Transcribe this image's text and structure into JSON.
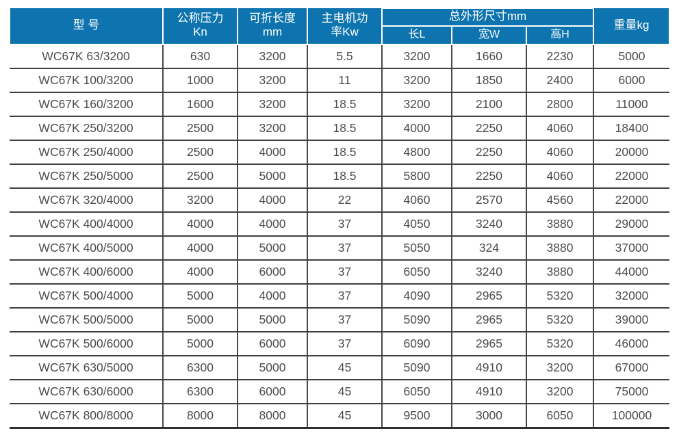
{
  "colors": {
    "header_bg": "#0e74af",
    "header_text": "#ffffff",
    "body_text": "#4c4c4c",
    "row_line": "#3f3f3f",
    "column_line": "#4a4a4a",
    "bottom_border": "#2f2f2f"
  },
  "table": {
    "header": {
      "model": "型 号",
      "pressure_line1": "公称压力",
      "pressure_line2": "Kn",
      "fold_length_line1": "可折长度",
      "fold_length_line2": "mm",
      "power_line1": "主电机功",
      "power_line2": "率Kw",
      "dimensions_group": "总外形尺寸mm",
      "dim_length": "长L",
      "dim_width": "宽W",
      "dim_height": "高H",
      "weight": "重量kg"
    },
    "rows": [
      {
        "model": "WC67K 63/3200",
        "pressure": "630",
        "fold_length": "3200",
        "power": "5.5",
        "dim_l": "3200",
        "dim_w": "1660",
        "dim_h": "2230",
        "weight": "5000"
      },
      {
        "model": "WC67K 100/3200",
        "pressure": "1000",
        "fold_length": "3200",
        "power": "11",
        "dim_l": "3200",
        "dim_w": "1850",
        "dim_h": "2400",
        "weight": "6000"
      },
      {
        "model": "WC67K 160/3200",
        "pressure": "1600",
        "fold_length": "3200",
        "power": "18.5",
        "dim_l": "3200",
        "dim_w": "2100",
        "dim_h": "2800",
        "weight": "11000"
      },
      {
        "model": "WC67K 250/3200",
        "pressure": "2500",
        "fold_length": "3200",
        "power": "18.5",
        "dim_l": "4000",
        "dim_w": "2250",
        "dim_h": "4060",
        "weight": "18400"
      },
      {
        "model": "WC67K 250/4000",
        "pressure": "2500",
        "fold_length": "4000",
        "power": "18.5",
        "dim_l": "4800",
        "dim_w": "2250",
        "dim_h": "4060",
        "weight": "20000"
      },
      {
        "model": "WC67K 250/5000",
        "pressure": "2500",
        "fold_length": "5000",
        "power": "18.5",
        "dim_l": "5800",
        "dim_w": "2250",
        "dim_h": "4060",
        "weight": "22000"
      },
      {
        "model": "WC67K 320/4000",
        "pressure": "3200",
        "fold_length": "4000",
        "power": "22",
        "dim_l": "4060",
        "dim_w": "2570",
        "dim_h": "4560",
        "weight": "22000"
      },
      {
        "model": "WC67K 400/4000",
        "pressure": "4000",
        "fold_length": "4000",
        "power": "37",
        "dim_l": "4050",
        "dim_w": "3240",
        "dim_h": "3880",
        "weight": "29000"
      },
      {
        "model": "WC67K 400/5000",
        "pressure": "4000",
        "fold_length": "5000",
        "power": "37",
        "dim_l": "5050",
        "dim_w": "324",
        "dim_h": "3880",
        "weight": "37000"
      },
      {
        "model": "WC67K 400/6000",
        "pressure": "4000",
        "fold_length": "6000",
        "power": "37",
        "dim_l": "6050",
        "dim_w": "3240",
        "dim_h": "3880",
        "weight": "44000"
      },
      {
        "model": "WC67K 500/4000",
        "pressure": "5000",
        "fold_length": "4000",
        "power": "37",
        "dim_l": "4090",
        "dim_w": "2965",
        "dim_h": "5320",
        "weight": "32000"
      },
      {
        "model": "WC67K 500/5000",
        "pressure": "5000",
        "fold_length": "5000",
        "power": "37",
        "dim_l": "5090",
        "dim_w": "2965",
        "dim_h": "5320",
        "weight": "39000"
      },
      {
        "model": "WC67K 500/6000",
        "pressure": "5000",
        "fold_length": "6000",
        "power": "37",
        "dim_l": "6090",
        "dim_w": "2965",
        "dim_h": "5320",
        "weight": "46000"
      },
      {
        "model": "WC67K 630/5000",
        "pressure": "6300",
        "fold_length": "5000",
        "power": "45",
        "dim_l": "5090",
        "dim_w": "4910",
        "dim_h": "3200",
        "weight": "67000"
      },
      {
        "model": "WC67K 630/6000",
        "pressure": "6300",
        "fold_length": "6000",
        "power": "45",
        "dim_l": "6050",
        "dim_w": "4910",
        "dim_h": "3200",
        "weight": "75000"
      },
      {
        "model": "WC67K 800/8000",
        "pressure": "8000",
        "fold_length": "8000",
        "power": "45",
        "dim_l": "9500",
        "dim_w": "3000",
        "dim_h": "6050",
        "weight": "100000"
      }
    ]
  }
}
